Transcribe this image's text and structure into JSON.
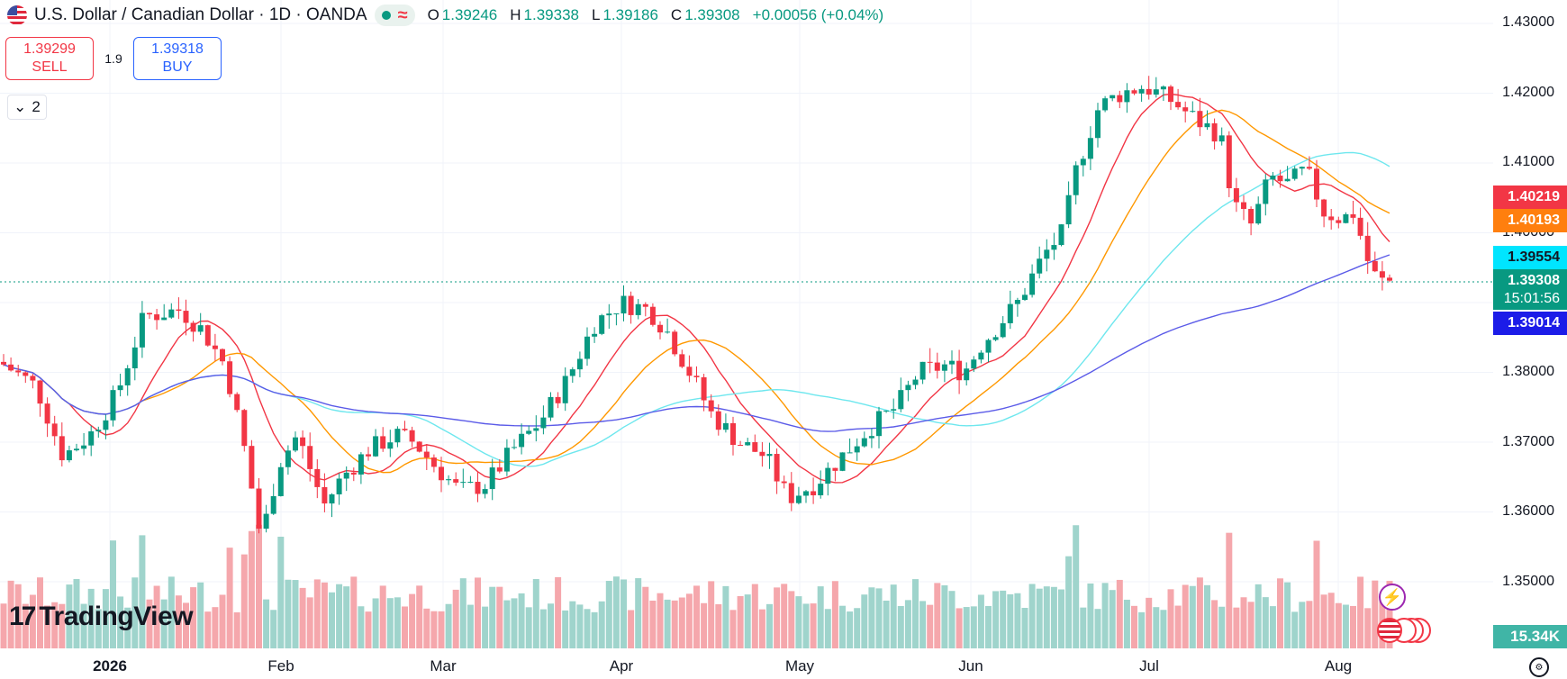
{
  "header": {
    "flag_icon": "us-ca-flag-icon",
    "title": "U.S. Dollar / Canadian Dollar · 1D · OANDA",
    "status_dot_color": "#089981",
    "ohlc": {
      "o_label": "O",
      "o": "1.39246",
      "h_label": "H",
      "h": "1.39338",
      "l_label": "L",
      "l": "1.39186",
      "c_label": "C",
      "c": "1.39308",
      "change": "+0.00056 (+0.04%)"
    }
  },
  "trade": {
    "sell_price": "1.39299",
    "sell_label": "SELL",
    "spread": "1.9",
    "buy_price": "1.39318",
    "buy_label": "BUY"
  },
  "indicator_toggle": {
    "count": "2",
    "icon": "chevron-down-icon"
  },
  "logo": {
    "text": "TradingView",
    "mark": "17"
  },
  "price_axis": {
    "ticks": [
      "1.43000",
      "1.42000",
      "1.41000",
      "1.40000",
      "1.38000",
      "1.37000",
      "1.36000",
      "1.35000"
    ],
    "labels": [
      {
        "value": "1.40219",
        "color": "#f23645"
      },
      {
        "value": "1.40193",
        "color": "#ff7f0e"
      },
      {
        "value": "1.39554",
        "color": "#00e5ff"
      },
      {
        "value": "1.39308",
        "color": "#089981"
      },
      {
        "value": "1.39014",
        "color": "#1c1ce8"
      }
    ],
    "countdown": "15:01:56",
    "volume_label": "15.34K"
  },
  "time_axis": {
    "ticks": [
      "2026",
      "Feb",
      "Mar",
      "Apr",
      "May",
      "Jun",
      "Jul",
      "Aug"
    ]
  },
  "colors": {
    "up": "#089981",
    "down": "#f23645",
    "vol_up": "#9fd4cc",
    "vol_down": "#f5a7ac",
    "ma_red": "#f23645",
    "ma_orange": "#ff9800",
    "ma_cyan": "#6ee7ee",
    "ma_blue": "#5b5be8"
  },
  "chart_data": {
    "type": "candlestick",
    "symbol": "USDCAD",
    "interval": "1D",
    "ylim": [
      1.345,
      1.432
    ],
    "moving_averages": [
      {
        "color": "#f23645",
        "last": 1.40219
      },
      {
        "color": "#ff9800",
        "last": 1.40193
      },
      {
        "color": "#6ee7ee",
        "last": 1.39554
      },
      {
        "color": "#5b5be8",
        "last": 1.39014
      }
    ],
    "last_close": 1.39308,
    "last_volume": "15.34K"
  }
}
